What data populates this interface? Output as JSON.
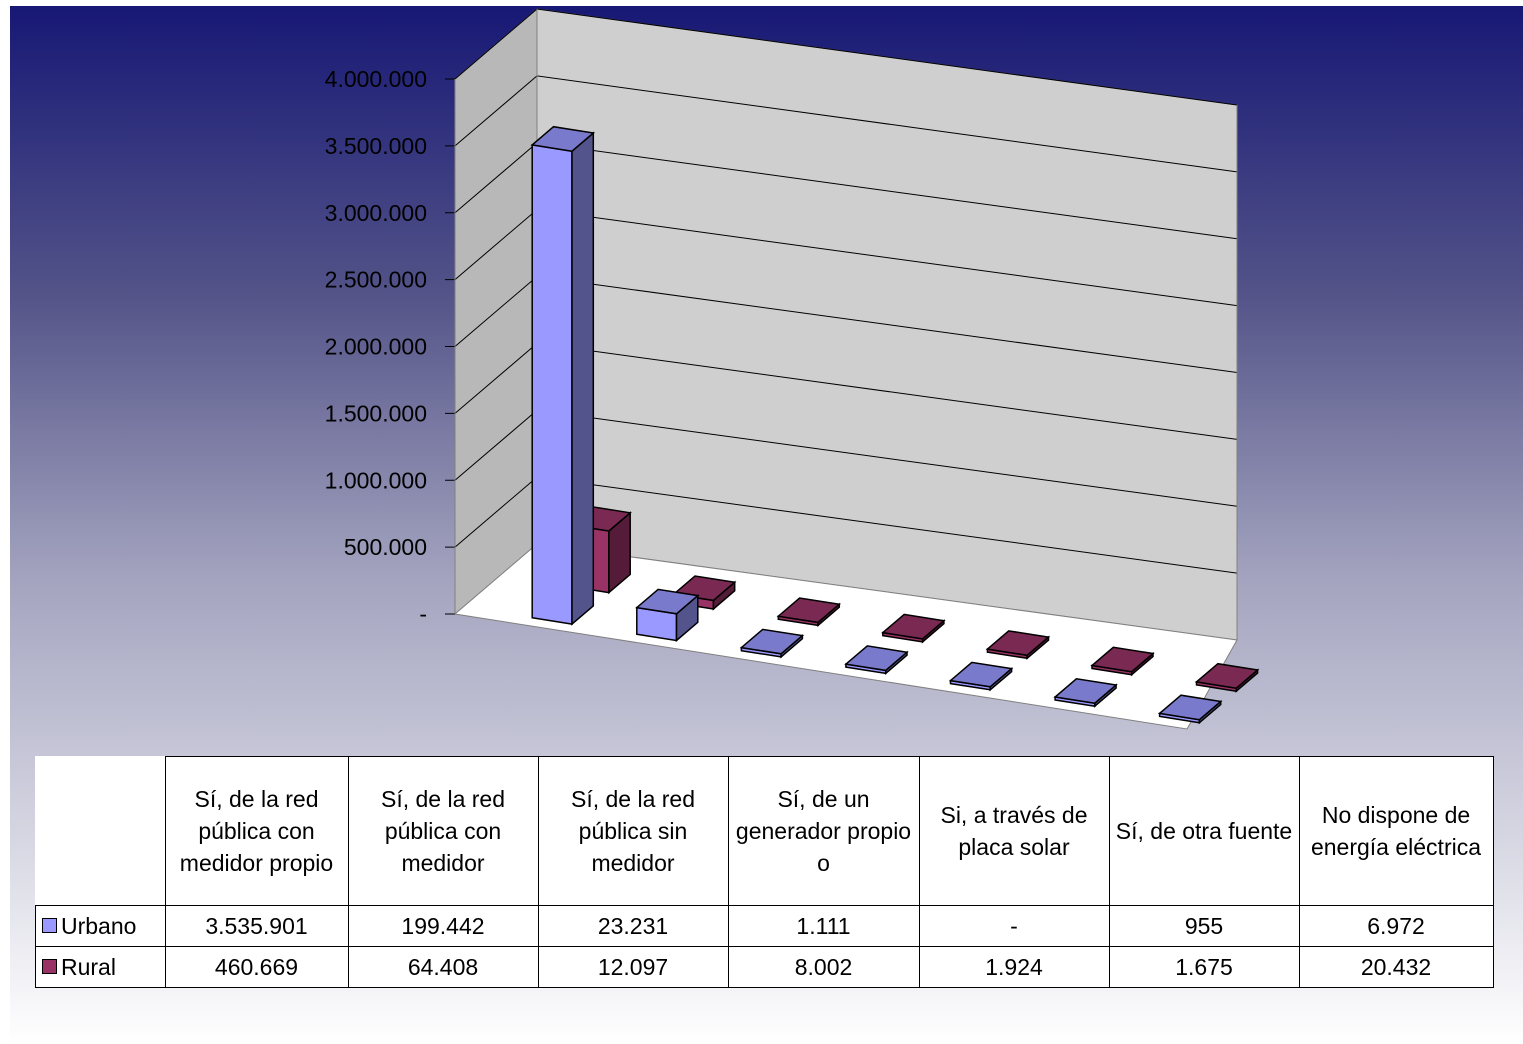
{
  "chart_data": {
    "type": "bar",
    "subtype": "3d-clustered-column-with-data-table",
    "categories": [
      "Sí, de la red pública con medidor propio",
      "Sí, de la red pública con medidor",
      "Sí, de la red pública sin medidor",
      "Sí, de un generador propio o",
      "Si, a través de placa solar",
      "Sí, de otra fuente",
      "No dispone de energía eléctrica"
    ],
    "series": [
      {
        "name": "Urbano",
        "color": "#9999ff",
        "values": [
          3535901,
          199442,
          23231,
          1111,
          0,
          955,
          6972
        ],
        "labels": [
          "3.535.901",
          "199.442",
          "23.231",
          "1.111",
          "-",
          "955",
          "6.972"
        ]
      },
      {
        "name": "Rural",
        "color": "#993366",
        "values": [
          460669,
          64408,
          12097,
          8002,
          1924,
          1675,
          20432
        ],
        "labels": [
          "460.669",
          "64.408",
          "12.097",
          "8.002",
          "1.924",
          "1.675",
          "20.432"
        ]
      }
    ],
    "y_ticks": [
      "-",
      "500.000",
      "1.000.000",
      "1.500.000",
      "2.000.000",
      "2.500.000",
      "3.000.000",
      "3.500.000",
      "4.000.000"
    ],
    "ylim": [
      0,
      4000000
    ],
    "grid": true,
    "legend": "in data table, left"
  }
}
